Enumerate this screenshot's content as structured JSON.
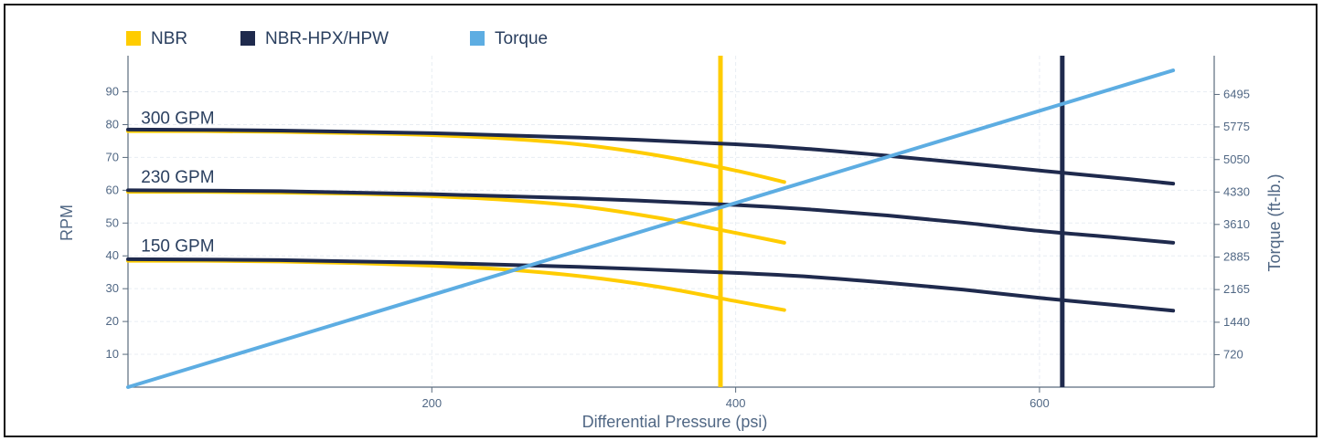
{
  "chart_data": {
    "type": "line",
    "title": "",
    "xlabel": "Differential Pressure (psi)",
    "ylabel": "RPM",
    "y2label": "Torque (ft-lb.)",
    "xlim": [
      0,
      715
    ],
    "ylim": [
      0,
      101
    ],
    "y2lim": [
      0,
      7355
    ],
    "xticks": [
      200,
      400,
      600
    ],
    "yticks": [
      10,
      20,
      30,
      40,
      50,
      60,
      70,
      80,
      90
    ],
    "y2ticks": [
      720,
      1440,
      2165,
      2885,
      3610,
      4330,
      5050,
      5775,
      6495
    ],
    "grid": true,
    "legend_position": "top-left",
    "legend": [
      {
        "label": "NBR",
        "color": "#ffcc00"
      },
      {
        "label": "NBR-HPX/HPW",
        "color": "#1f2a4d"
      },
      {
        "label": "Torque",
        "color": "#5dade2"
      }
    ],
    "series": [
      {
        "group": "NBR",
        "color": "#ffcc00",
        "x": [
          0,
          50,
          100,
          150,
          200,
          250,
          300,
          350,
          400,
          432
        ],
        "y": [
          78,
          78,
          77.8,
          77.4,
          76.8,
          75.7,
          73.8,
          70.5,
          66,
          62.5
        ]
      },
      {
        "group": "NBR",
        "color": "#ffcc00",
        "x": [
          0,
          50,
          100,
          150,
          200,
          250,
          300,
          350,
          400,
          432
        ],
        "y": [
          59.5,
          59.5,
          59.3,
          58.9,
          58.2,
          57,
          55,
          51.5,
          47,
          44
        ]
      },
      {
        "group": "NBR",
        "color": "#ffcc00",
        "x": [
          0,
          50,
          100,
          150,
          200,
          250,
          300,
          350,
          400,
          432
        ],
        "y": [
          38.5,
          38.5,
          38.3,
          37.8,
          37,
          35.8,
          33.7,
          30.5,
          26.2,
          23.5
        ]
      },
      {
        "group": "NBR-HPX/HPW",
        "color": "#1f2a4d",
        "x": [
          0,
          100,
          200,
          300,
          400,
          450,
          500,
          550,
          600,
          650,
          688
        ],
        "y": [
          78.5,
          78.2,
          77.4,
          76,
          74,
          72.5,
          70.5,
          68.3,
          66,
          63.8,
          62
        ]
      },
      {
        "group": "NBR-HPX/HPW",
        "color": "#1f2a4d",
        "x": [
          0,
          100,
          200,
          300,
          400,
          450,
          500,
          550,
          600,
          650,
          688
        ],
        "y": [
          60,
          59.7,
          58.8,
          57.5,
          55.5,
          54.1,
          52.3,
          50.1,
          47.6,
          45.6,
          44
        ]
      },
      {
        "group": "NBR-HPX/HPW",
        "color": "#1f2a4d",
        "x": [
          0,
          100,
          200,
          300,
          400,
          450,
          500,
          550,
          600,
          650,
          688
        ],
        "y": [
          39,
          38.7,
          37.9,
          36.6,
          34.8,
          33.6,
          31.8,
          29.7,
          27.2,
          25,
          23.3
        ]
      },
      {
        "group": "Torque",
        "color": "#5dade2",
        "axis": "right",
        "x": [
          0,
          688
        ],
        "y": [
          0,
          7030
        ]
      }
    ],
    "vlines": [
      {
        "x": 390,
        "color": "#ffcc00"
      },
      {
        "x": 615,
        "color": "#1f2a4d"
      }
    ],
    "annotations": [
      {
        "text": "300 GPM",
        "x": 5,
        "y": 82
      },
      {
        "text": "230 GPM",
        "x": 5,
        "y": 64
      },
      {
        "text": "150 GPM",
        "x": 5,
        "y": 43
      }
    ]
  }
}
